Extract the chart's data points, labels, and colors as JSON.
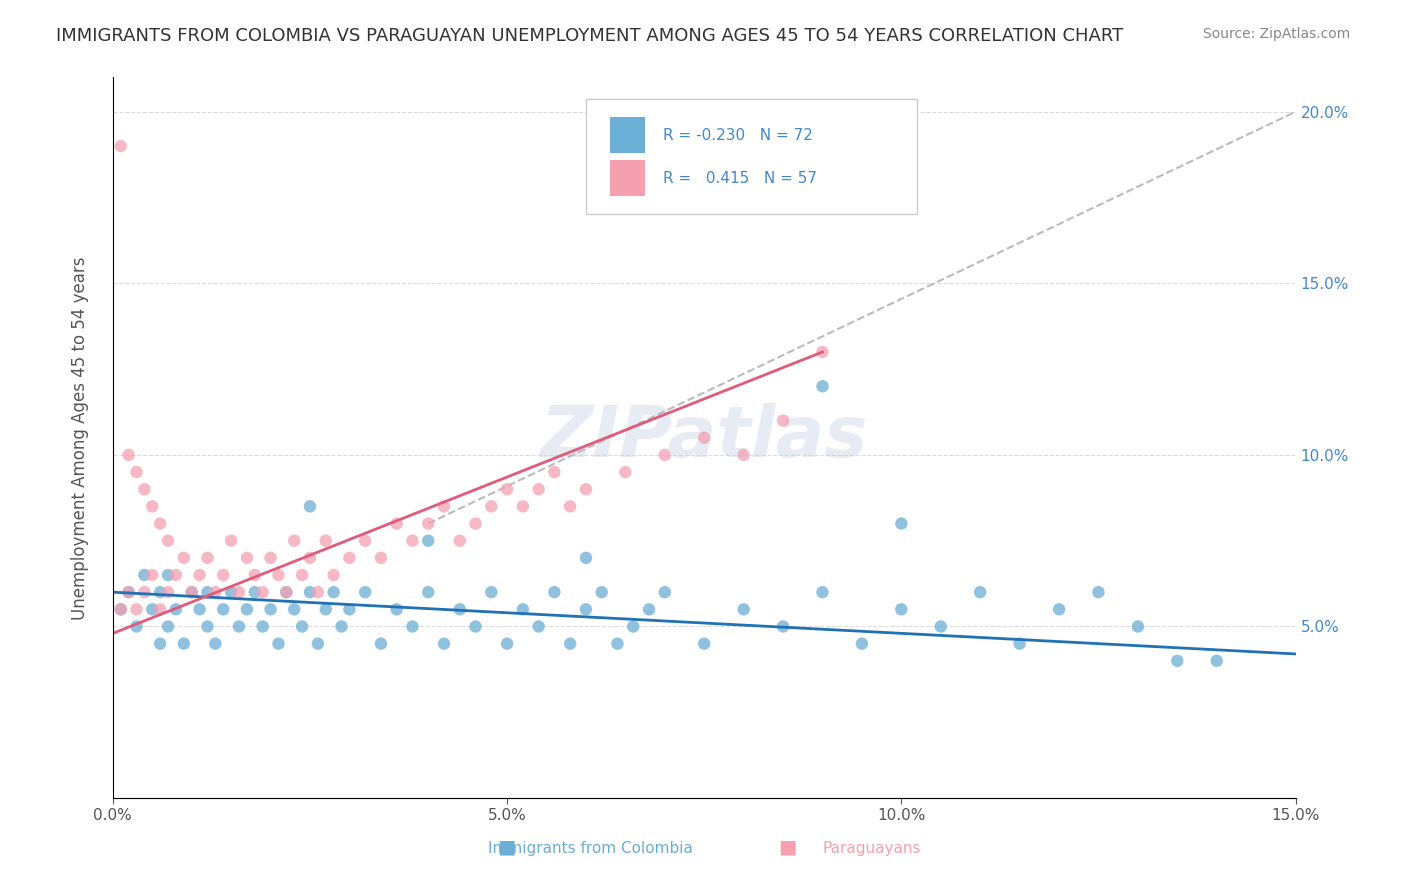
{
  "title": "IMMIGRANTS FROM COLOMBIA VS PARAGUAYAN UNEMPLOYMENT AMONG AGES 45 TO 54 YEARS CORRELATION CHART",
  "source": "Source: ZipAtlas.com",
  "ylabel": "Unemployment Among Ages 45 to 54 years",
  "xlabel_blue": "Immigrants from Colombia",
  "xlabel_pink": "Paraguayans",
  "legend_blue_R": "-0.230",
  "legend_blue_N": "72",
  "legend_pink_R": "0.415",
  "legend_pink_N": "57",
  "xlim": [
    0.0,
    0.15
  ],
  "ylim": [
    0.0,
    0.21
  ],
  "xticks": [
    0.0,
    0.05,
    0.1,
    0.15
  ],
  "xtick_labels": [
    "0.0%",
    "5.0%",
    "10.0%",
    "15.0%"
  ],
  "yticks": [
    0.05,
    0.1,
    0.15,
    0.2
  ],
  "ytick_labels": [
    "5.0%",
    "10.0%",
    "15.0%",
    "20.0%"
  ],
  "blue_color": "#6baed6",
  "pink_color": "#f4a0b0",
  "blue_line_color": "#2171b5",
  "pink_line_color": "#e05a7a",
  "gray_dash_color": "#bbbbbb",
  "title_color": "#333333",
  "axis_label_color": "#555555",
  "tick_label_color_right": "#4488cc",
  "background_color": "#ffffff",
  "watermark": "ZIPatlas",
  "blue_scatter_x": [
    0.001,
    0.002,
    0.003,
    0.004,
    0.005,
    0.006,
    0.006,
    0.007,
    0.007,
    0.008,
    0.009,
    0.01,
    0.011,
    0.012,
    0.012,
    0.013,
    0.014,
    0.015,
    0.016,
    0.017,
    0.018,
    0.019,
    0.02,
    0.021,
    0.022,
    0.023,
    0.024,
    0.025,
    0.026,
    0.027,
    0.028,
    0.029,
    0.03,
    0.032,
    0.034,
    0.036,
    0.038,
    0.04,
    0.042,
    0.044,
    0.046,
    0.048,
    0.05,
    0.052,
    0.054,
    0.056,
    0.058,
    0.06,
    0.062,
    0.064,
    0.066,
    0.068,
    0.07,
    0.075,
    0.08,
    0.085,
    0.09,
    0.095,
    0.1,
    0.105,
    0.11,
    0.115,
    0.12,
    0.125,
    0.13,
    0.09,
    0.1,
    0.06,
    0.04,
    0.025,
    0.135,
    0.14
  ],
  "blue_scatter_y": [
    0.055,
    0.06,
    0.05,
    0.065,
    0.055,
    0.045,
    0.06,
    0.05,
    0.065,
    0.055,
    0.045,
    0.06,
    0.055,
    0.05,
    0.06,
    0.045,
    0.055,
    0.06,
    0.05,
    0.055,
    0.06,
    0.05,
    0.055,
    0.045,
    0.06,
    0.055,
    0.05,
    0.06,
    0.045,
    0.055,
    0.06,
    0.05,
    0.055,
    0.06,
    0.045,
    0.055,
    0.05,
    0.06,
    0.045,
    0.055,
    0.05,
    0.06,
    0.045,
    0.055,
    0.05,
    0.06,
    0.045,
    0.055,
    0.06,
    0.045,
    0.05,
    0.055,
    0.06,
    0.045,
    0.055,
    0.05,
    0.06,
    0.045,
    0.055,
    0.05,
    0.06,
    0.045,
    0.055,
    0.06,
    0.05,
    0.12,
    0.08,
    0.07,
    0.075,
    0.085,
    0.04,
    0.04
  ],
  "pink_scatter_x": [
    0.001,
    0.001,
    0.002,
    0.002,
    0.003,
    0.003,
    0.004,
    0.004,
    0.005,
    0.005,
    0.006,
    0.006,
    0.007,
    0.007,
    0.008,
    0.009,
    0.01,
    0.011,
    0.012,
    0.013,
    0.014,
    0.015,
    0.016,
    0.017,
    0.018,
    0.019,
    0.02,
    0.021,
    0.022,
    0.023,
    0.024,
    0.025,
    0.026,
    0.027,
    0.028,
    0.03,
    0.032,
    0.034,
    0.036,
    0.038,
    0.04,
    0.042,
    0.044,
    0.046,
    0.048,
    0.05,
    0.052,
    0.054,
    0.056,
    0.058,
    0.06,
    0.065,
    0.07,
    0.075,
    0.08,
    0.085,
    0.09
  ],
  "pink_scatter_y": [
    0.055,
    0.19,
    0.06,
    0.1,
    0.055,
    0.095,
    0.06,
    0.09,
    0.065,
    0.085,
    0.055,
    0.08,
    0.06,
    0.075,
    0.065,
    0.07,
    0.06,
    0.065,
    0.07,
    0.06,
    0.065,
    0.075,
    0.06,
    0.07,
    0.065,
    0.06,
    0.07,
    0.065,
    0.06,
    0.075,
    0.065,
    0.07,
    0.06,
    0.075,
    0.065,
    0.07,
    0.075,
    0.07,
    0.08,
    0.075,
    0.08,
    0.085,
    0.075,
    0.08,
    0.085,
    0.09,
    0.085,
    0.09,
    0.095,
    0.085,
    0.09,
    0.095,
    0.1,
    0.105,
    0.1,
    0.11,
    0.13
  ],
  "blue_trend_x": [
    0.0,
    0.15
  ],
  "blue_trend_y": [
    0.06,
    0.042
  ],
  "pink_trend_x": [
    0.0,
    0.09
  ],
  "pink_trend_y": [
    0.048,
    0.13
  ],
  "gray_trend_x": [
    0.04,
    0.15
  ],
  "gray_trend_y": [
    0.08,
    0.2
  ]
}
